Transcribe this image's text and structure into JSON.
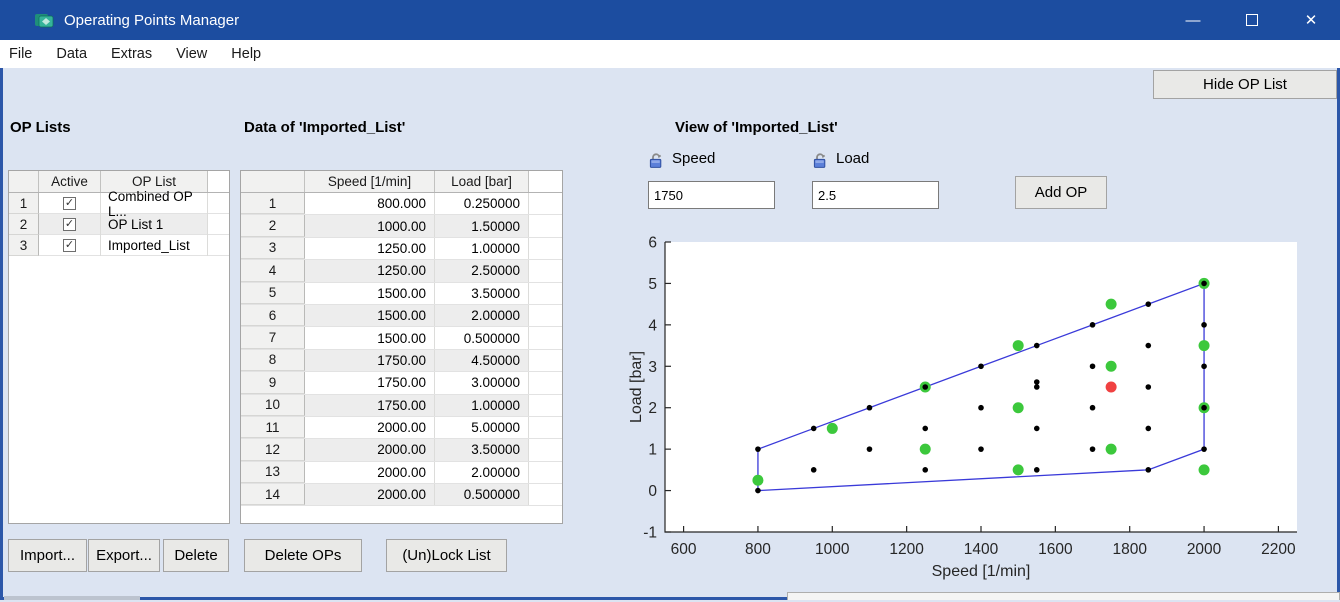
{
  "window": {
    "title": "Operating Points Manager",
    "icons": {
      "app": "layered-boxes-app-icon",
      "minimize": "—",
      "close": "✕"
    }
  },
  "menu": {
    "items": [
      "File",
      "Data",
      "Extras",
      "View",
      "Help"
    ]
  },
  "toolbar": {
    "hide_op_list_label": "Hide OP List"
  },
  "op_lists": {
    "heading": "OP Lists",
    "columns": [
      "Active",
      "OP List"
    ],
    "rows": [
      {
        "num": "1",
        "active": true,
        "name": "Combined OP L..."
      },
      {
        "num": "2",
        "active": true,
        "name": "OP List 1"
      },
      {
        "num": "3",
        "active": true,
        "name": "Imported_List"
      }
    ],
    "buttons": {
      "import": "Import...",
      "export": "Export...",
      "delete": "Delete"
    },
    "checkmark_glyph": "✓"
  },
  "data_panel": {
    "heading": "Data of 'Imported_List'",
    "columns": [
      "Speed [1/min]",
      "Load [bar]"
    ],
    "rows": [
      [
        "1",
        "800.000",
        "0.250000"
      ],
      [
        "2",
        "1000.00",
        "1.50000"
      ],
      [
        "3",
        "1250.00",
        "1.00000"
      ],
      [
        "4",
        "1250.00",
        "2.50000"
      ],
      [
        "5",
        "1500.00",
        "3.50000"
      ],
      [
        "6",
        "1500.00",
        "2.00000"
      ],
      [
        "7",
        "1500.00",
        "0.500000"
      ],
      [
        "8",
        "1750.00",
        "4.50000"
      ],
      [
        "9",
        "1750.00",
        "3.00000"
      ],
      [
        "10",
        "1750.00",
        "1.00000"
      ],
      [
        "11",
        "2000.00",
        "5.00000"
      ],
      [
        "12",
        "2000.00",
        "3.50000"
      ],
      [
        "13",
        "2000.00",
        "2.00000"
      ],
      [
        "14",
        "2000.00",
        "0.500000"
      ]
    ],
    "buttons": {
      "delete_ops": "Delete OPs",
      "unlock_list": "(Un)Lock List"
    }
  },
  "view_panel": {
    "heading": "View of 'Imported_List'",
    "speed_label": "Speed",
    "speed_value": "1750",
    "load_label": "Load",
    "load_value": "2.5",
    "add_op_label": "Add OP",
    "lock_icon": "unlock-icon"
  },
  "chart_data": {
    "type": "scatter",
    "xlabel": "Speed [1/min]",
    "ylabel": "Load [bar]",
    "xlim": [
      550,
      2250
    ],
    "ylim": [
      -1,
      6
    ],
    "xticks": [
      600,
      800,
      1000,
      1200,
      1400,
      1600,
      1800,
      2000,
      2200
    ],
    "yticks": [
      -1,
      0,
      1,
      2,
      3,
      4,
      5,
      6
    ],
    "grid": false,
    "boundary_line": {
      "color": "#3a3ad9",
      "points": [
        [
          800,
          0
        ],
        [
          800,
          1
        ],
        [
          950,
          1.5
        ],
        [
          1100,
          2
        ],
        [
          1250,
          2.5
        ],
        [
          1400,
          3
        ],
        [
          1550,
          3.5
        ],
        [
          1700,
          4
        ],
        [
          1850,
          4.5
        ],
        [
          2000,
          5
        ],
        [
          2000,
          4
        ],
        [
          2000,
          3
        ],
        [
          2000,
          2
        ],
        [
          2000,
          1
        ],
        [
          1850,
          0.5
        ],
        [
          800,
          0
        ]
      ]
    },
    "series": [
      {
        "name": "imported-list-points",
        "marker": "circle",
        "color": "#3cc83c",
        "size": 5.5,
        "points": [
          [
            800,
            0.25
          ],
          [
            1000,
            1.5
          ],
          [
            1250,
            1
          ],
          [
            1250,
            2.5
          ],
          [
            1500,
            0.5
          ],
          [
            1500,
            2
          ],
          [
            1500,
            3.5
          ],
          [
            1750,
            1
          ],
          [
            1750,
            3
          ],
          [
            1750,
            4.5
          ],
          [
            2000,
            0.5
          ],
          [
            2000,
            2
          ],
          [
            2000,
            3.5
          ],
          [
            2000,
            5
          ]
        ]
      },
      {
        "name": "other-active-lists-points",
        "marker": "dot",
        "color": "#000000",
        "size": 2.8,
        "points": [
          [
            800,
            0
          ],
          [
            800,
            1
          ],
          [
            950,
            0.5
          ],
          [
            950,
            1.5
          ],
          [
            1100,
            1
          ],
          [
            1100,
            2
          ],
          [
            1250,
            0.5
          ],
          [
            1250,
            1.5
          ],
          [
            1250,
            2.5
          ],
          [
            1400,
            1
          ],
          [
            1400,
            2
          ],
          [
            1400,
            3
          ],
          [
            1550,
            0.5
          ],
          [
            1550,
            1.5
          ],
          [
            1550,
            2.5
          ],
          [
            1550,
            2.62
          ],
          [
            1550,
            3.5
          ],
          [
            1700,
            1
          ],
          [
            1700,
            2
          ],
          [
            1700,
            3
          ],
          [
            1700,
            4
          ],
          [
            1850,
            0.5
          ],
          [
            1850,
            1.5
          ],
          [
            1850,
            2.5
          ],
          [
            1850,
            3.5
          ],
          [
            1850,
            4.5
          ],
          [
            2000,
            1
          ],
          [
            2000,
            2
          ],
          [
            2000,
            3
          ],
          [
            2000,
            4
          ],
          [
            2000,
            5
          ]
        ]
      },
      {
        "name": "candidate-op-point",
        "marker": "circle",
        "color": "#f04141",
        "size": 5.5,
        "points": [
          [
            1750,
            2.5
          ]
        ]
      }
    ]
  }
}
